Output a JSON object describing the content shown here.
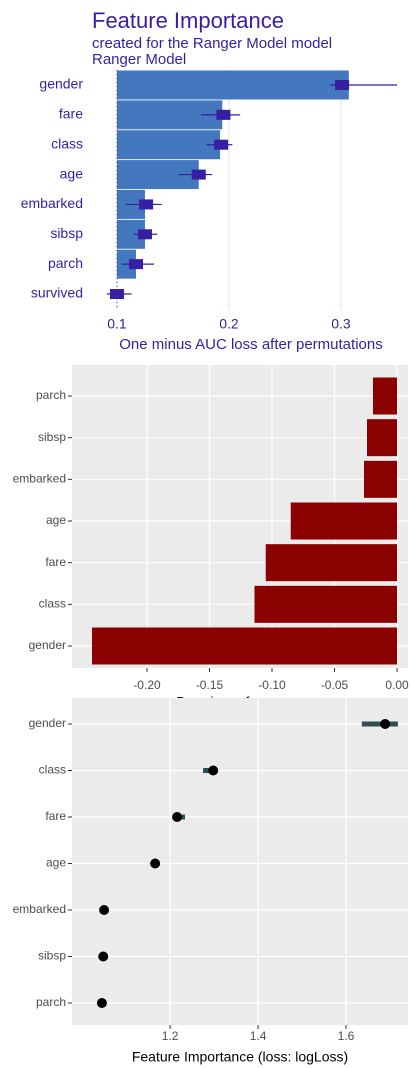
{
  "chart_data": [
    {
      "type": "bar",
      "title": "Feature Importance",
      "subtitle": [
        "created for the Ranger Model model",
        "Ranger Model"
      ],
      "xlabel": "One minus AUC loss after permutations",
      "categories": [
        "gender",
        "fare",
        "class",
        "age",
        "embarked",
        "sibsp",
        "parch",
        "survived"
      ],
      "values": [
        0.307,
        0.194,
        0.192,
        0.173,
        0.125,
        0.125,
        0.117,
        0.1
      ],
      "means": [
        0.301,
        0.195,
        0.193,
        0.173,
        0.126,
        0.125,
        0.117,
        0.1
      ],
      "lower": [
        0.29,
        0.175,
        0.18,
        0.155,
        0.108,
        0.115,
        0.104,
        0.091
      ],
      "upper": [
        0.35,
        0.21,
        0.203,
        0.185,
        0.14,
        0.136,
        0.133,
        0.113
      ],
      "baseline": 0.1,
      "color": "#4378bf",
      "error_color": "#371ea3",
      "xlim": [
        0.0893,
        0.35
      ],
      "xticks": [
        0.1,
        0.2,
        0.3
      ],
      "grid": true
    },
    {
      "type": "bar",
      "xlabel": "Drop in performance",
      "categories": [
        "parch",
        "sibsp",
        "embarked",
        "age",
        "fare",
        "class",
        "gender"
      ],
      "values": [
        -0.0192,
        -0.024,
        -0.0264,
        -0.085,
        -0.105,
        -0.114,
        -0.244
      ],
      "color": "#8b0000",
      "xlim": [
        -0.26,
        0.0088
      ],
      "xticks": [
        {
          "value": -0.2,
          "label": "-0.20"
        },
        {
          "value": -0.15,
          "label": "-0.15"
        },
        {
          "value": -0.1,
          "label": "-0.10"
        },
        {
          "value": -0.05,
          "label": "-0.05"
        },
        {
          "value": 0,
          "label": "0.00"
        }
      ],
      "grid": true
    },
    {
      "type": "scatter",
      "xlabel": "Feature Importance (loss: logLoss)",
      "categories": [
        "gender",
        "class",
        "fare",
        "age",
        "embarked",
        "sibsp",
        "parch"
      ],
      "values": [
        1.689,
        1.298,
        1.216,
        1.166,
        1.05,
        1.048,
        1.045
      ],
      "lower": [
        1.636,
        1.275,
        null,
        null,
        null,
        null,
        null
      ],
      "upper": [
        1.718,
        null,
        1.234,
        null,
        null,
        null,
        null
      ],
      "color": "#000000",
      "error_color": "#2f4f4f",
      "xlim": [
        0.977,
        1.741
      ],
      "xticks": [
        1.2,
        1.4,
        1.6
      ],
      "grid": true
    }
  ]
}
